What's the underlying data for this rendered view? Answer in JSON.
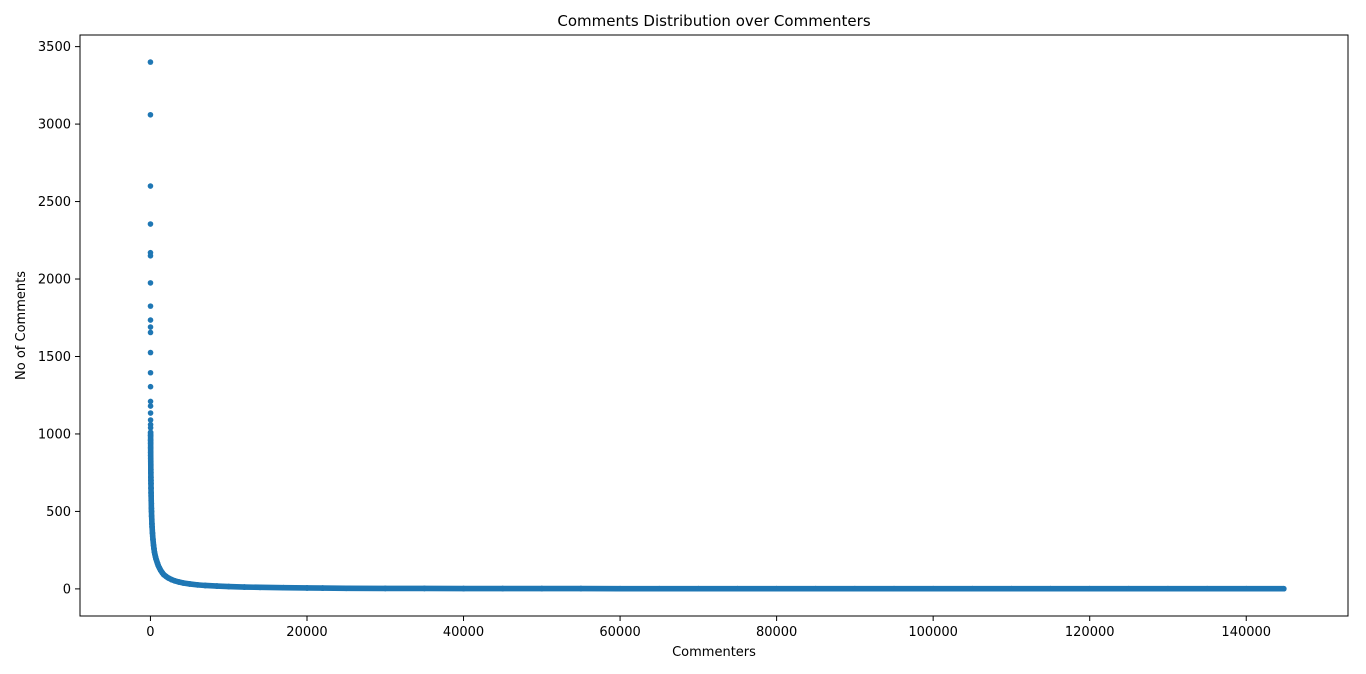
{
  "chart_data": {
    "type": "scatter",
    "title": "Comments Distribution over Commenters",
    "xlabel": "Commenters",
    "ylabel": "No of Comments",
    "xlim": [
      -9000,
      153000
    ],
    "ylim": [
      -175,
      3575
    ],
    "xticks": [
      0,
      20000,
      40000,
      60000,
      80000,
      100000,
      120000,
      140000
    ],
    "yticks": [
      0,
      500,
      1000,
      1500,
      2000,
      2500,
      3000,
      3500
    ],
    "grid": false,
    "legend": "none",
    "marker_color": "#1f77b4",
    "series": [
      {
        "x": [
          0,
          1,
          2,
          3,
          4,
          5,
          6,
          7,
          8,
          9,
          10,
          11,
          12,
          13,
          14,
          15,
          16,
          17,
          18,
          19,
          20,
          22,
          24,
          26,
          28,
          30,
          33,
          36,
          40,
          44,
          48,
          52,
          57,
          62,
          68,
          75,
          82,
          90,
          100,
          110,
          120,
          135,
          150,
          170,
          190,
          210,
          235,
          260,
          290,
          320,
          360,
          400,
          450,
          500,
          560,
          630,
          700,
          800,
          900,
          1000,
          1150,
          1300,
          1500,
          1700,
          2000,
          2300,
          2700,
          3100,
          3600,
          4200,
          5000,
          6000,
          7000,
          8500,
          10000,
          12000,
          14000,
          17000,
          20000,
          22000,
          25000,
          30000,
          35000,
          40000,
          45000,
          50000,
          55000,
          60000,
          65000,
          70000,
          75000,
          80000,
          85000,
          90000,
          95000,
          100000,
          105000,
          110000,
          115000,
          120000,
          125000,
          130000,
          135000,
          140000,
          144800
        ],
        "y": [
          3400,
          3060,
          2600,
          2355,
          2170,
          2150,
          1975,
          1825,
          1735,
          1690,
          1655,
          1525,
          1395,
          1305,
          1210,
          1180,
          1135,
          1090,
          1060,
          1040,
          1010,
          990,
          960,
          940,
          910,
          880,
          860,
          840,
          820,
          800,
          770,
          750,
          720,
          700,
          680,
          650,
          620,
          600,
          570,
          550,
          520,
          500,
          470,
          450,
          420,
          400,
          380,
          360,
          340,
          320,
          300,
          280,
          260,
          240,
          225,
          210,
          195,
          180,
          165,
          150,
          135,
          120,
          105,
          92,
          80,
          70,
          60,
          52,
          45,
          38,
          32,
          26,
          22,
          18,
          15,
          12,
          10,
          8,
          6,
          5,
          4,
          3,
          3,
          2,
          2,
          2,
          2,
          1,
          1,
          1,
          1,
          1,
          1,
          1,
          1,
          1,
          1,
          1,
          1,
          1,
          1,
          1,
          1,
          1,
          1
        ]
      }
    ]
  }
}
